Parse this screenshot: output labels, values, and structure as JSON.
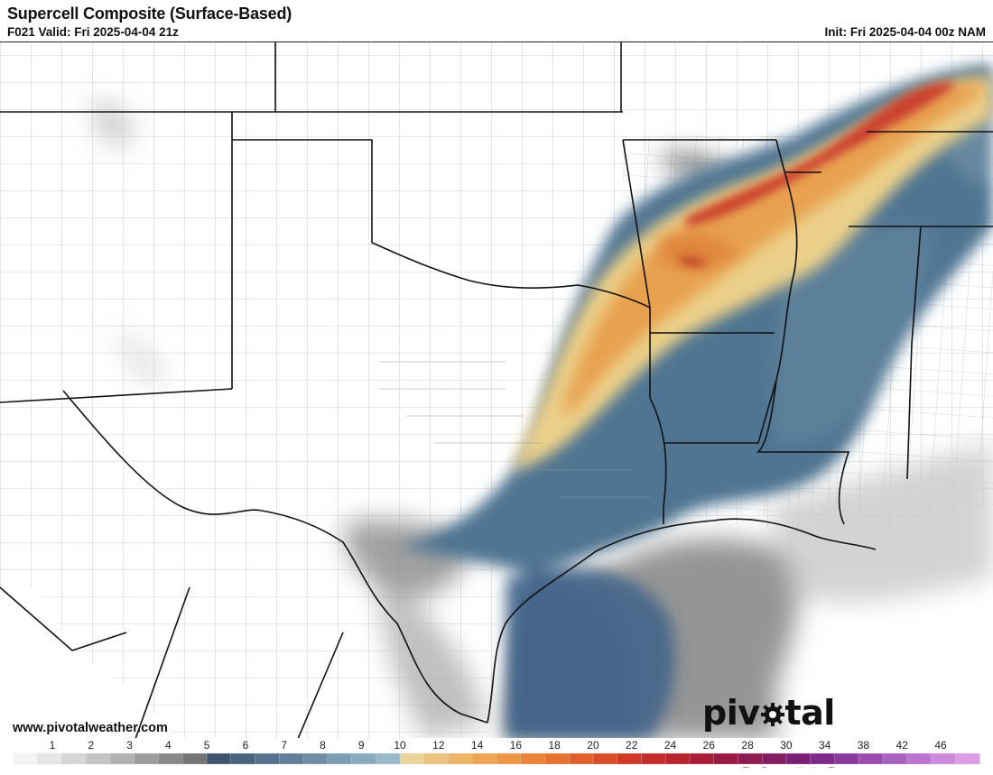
{
  "header": {
    "title": "Supercell Composite (Surface-Based)",
    "valid": "F021 Valid: Fri 2025-04-04 21z",
    "init": "Init: Fri 2025-04-04 00z NAM"
  },
  "footer": {
    "website": "www.pivotalweather.com",
    "brand_left": "piv",
    "brand_right": "tal weather"
  },
  "colors": {
    "state_border": "#111111",
    "county_border": "#9a9a9a",
    "low_gray": "#8c8c8c",
    "blue": "#4f7592",
    "tan": "#ecd08a",
    "orange": "#e7a04e",
    "red": "#c93d2a"
  },
  "legend": {
    "ticks": [
      "1",
      "2",
      "3",
      "4",
      "5",
      "6",
      "7",
      "8",
      "9",
      "10",
      "12",
      "14",
      "16",
      "18",
      "20",
      "22",
      "24",
      "26",
      "28",
      "30",
      "34",
      "38",
      "42",
      "46"
    ],
    "swatches": [
      "#f4f4f4",
      "#e6e6e6",
      "#d6d6d6",
      "#c4c4c4",
      "#b0b0b0",
      "#9c9c9c",
      "#888888",
      "#747474",
      "#3e5570",
      "#4a637e",
      "#56718c",
      "#627f99",
      "#6f8ea6",
      "#7c9db2",
      "#8aabbe",
      "#98b9c9",
      "#ead49a",
      "#ebc57f",
      "#ecb566",
      "#eda552",
      "#ec9543",
      "#ea8437",
      "#e6722f",
      "#e05f2a",
      "#d94c27",
      "#cf3a27",
      "#c42c2a",
      "#b8232e",
      "#a91d36",
      "#9a1a42",
      "#8d1b52",
      "#821d63",
      "#7b1e76",
      "#7e2a8a",
      "#8a3a9e",
      "#9a4cb0",
      "#ab5fc0",
      "#bd73cf",
      "#cd88dc",
      "#dc9de6"
    ]
  }
}
